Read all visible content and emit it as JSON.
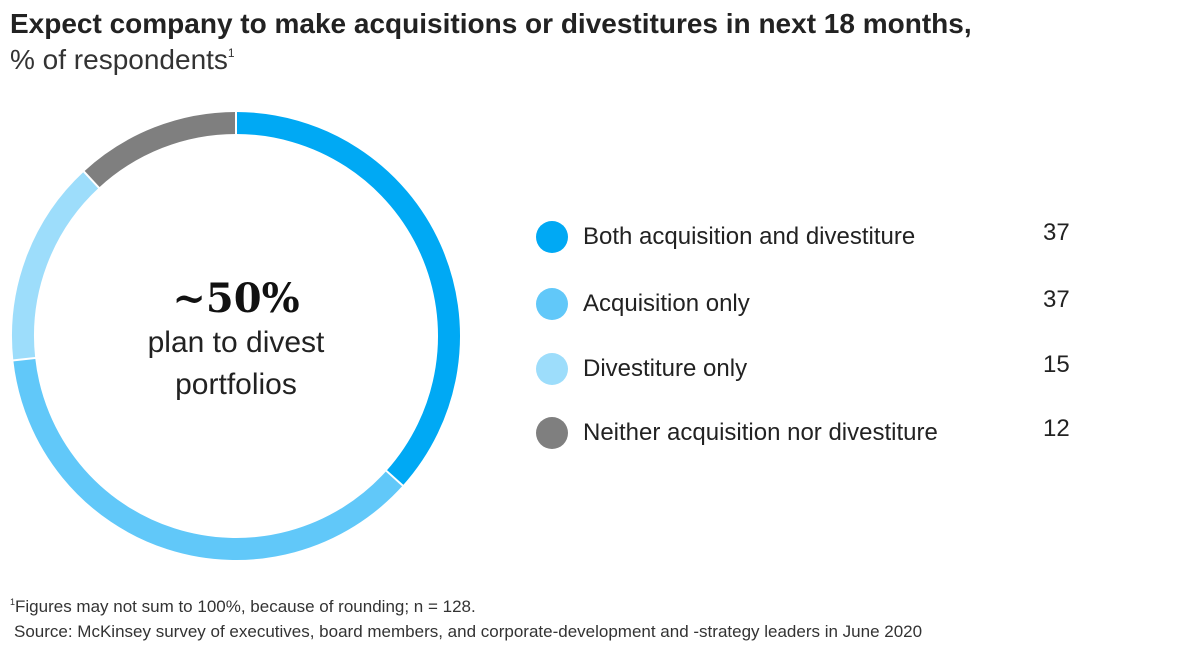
{
  "chart_data": {
    "type": "pie",
    "title": "Expect company to make acquisitions or divestitures in next 18 months,",
    "subtitle": "% of respondents",
    "subtitle_footnote_mark": "1",
    "center_label": {
      "value": "~50%",
      "text_line1": "plan to divest",
      "text_line2": "portfolios"
    },
    "slices": [
      {
        "label": "Both acquisition and divestiture",
        "value": 37,
        "color": "#00a9f4"
      },
      {
        "label": "Acquisition only",
        "value": 37,
        "color": "#61c8f9"
      },
      {
        "label": "Divestiture only",
        "value": 15,
        "color": "#9dddfb"
      },
      {
        "label": "Neither acquisition nor divestiture",
        "value": 12,
        "color": "#7f7f7f"
      }
    ],
    "legend_placement": "right"
  },
  "footnotes": {
    "mark": "1",
    "note": "Figures may not sum to 100%, because of rounding; n = 128.",
    "source": "Source: McKinsey survey of executives, board members, and corporate-development and -strategy leaders in June 2020"
  }
}
